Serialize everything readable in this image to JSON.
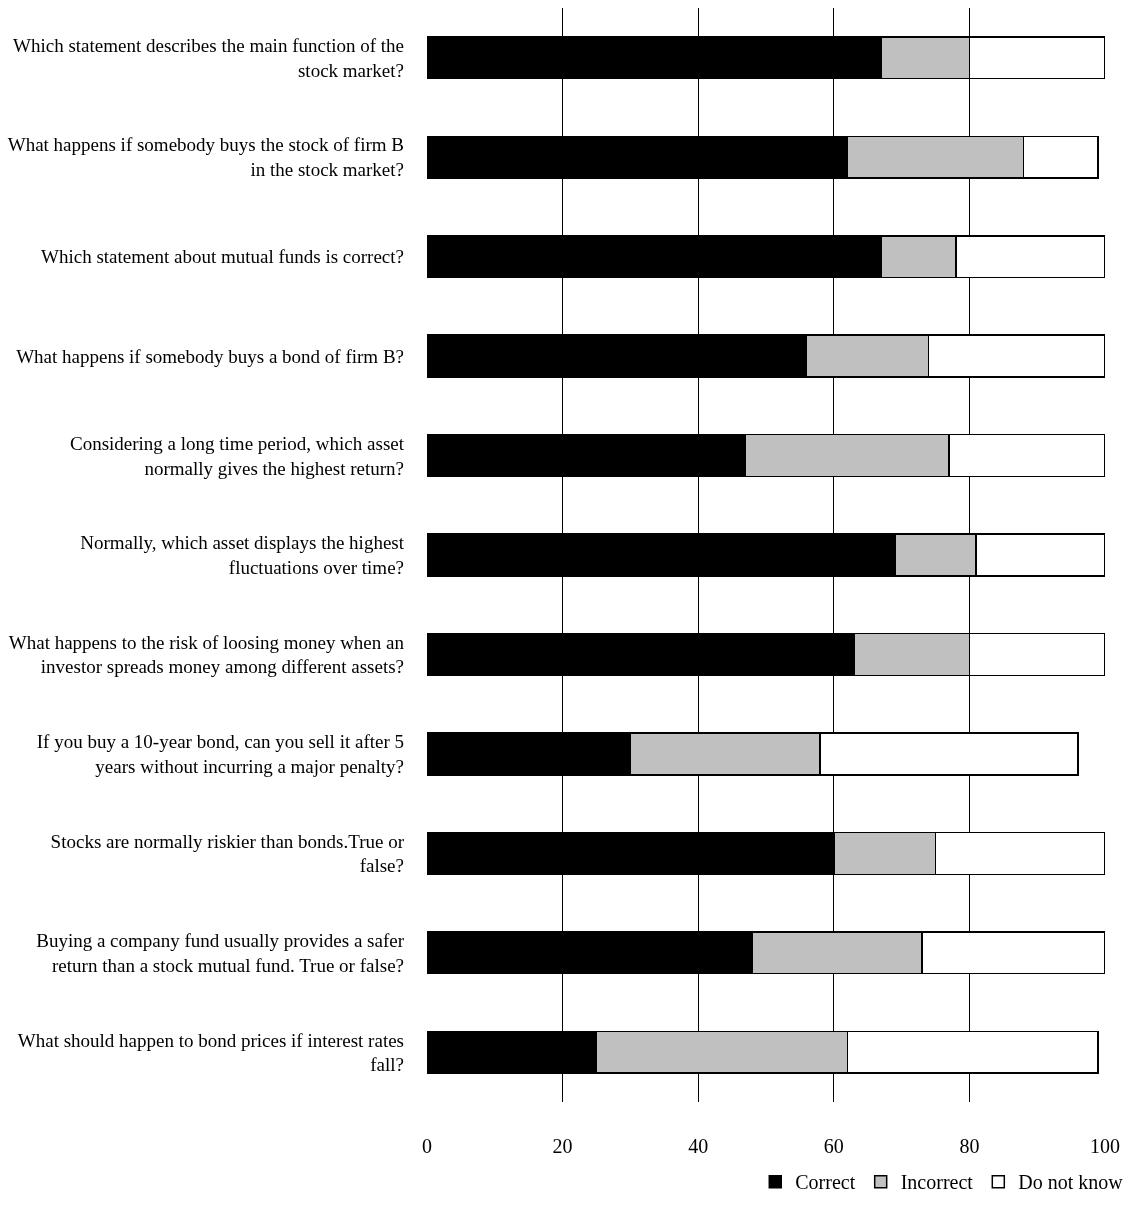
{
  "chart_data": {
    "type": "bar",
    "orientation": "horizontal",
    "stacked": true,
    "categories": [
      "Which statement describes the main function of the stock market?",
      "What happens if somebody buys the stock of firm B in the stock market?",
      "Which statement about mutual funds is correct?",
      "What happens if somebody buys a bond of firm B?",
      "Considering a long time period, which asset normally gives the highest return?",
      "Normally, which asset displays the highest fluctuations over time?",
      "What happens to the risk of loosing money when an investor spreads money among different assets?",
      "If you buy a 10-year bond, can you sell it after 5 years without incurring a major penalty?",
      "Stocks are normally riskier than bonds.True or false?",
      "Buying a company fund usually provides a safer return than a stock mutual fund. True or false?",
      "What should happen to bond prices if interest rates fall?"
    ],
    "series": [
      {
        "name": "Correct",
        "color": "#000000",
        "values": [
          67,
          62,
          67,
          56,
          47,
          69,
          63,
          30,
          60,
          48,
          25
        ]
      },
      {
        "name": "Incorrect",
        "color": "#c0c0c0",
        "values": [
          13,
          26,
          11,
          18,
          30,
          12,
          17,
          28,
          15,
          25,
          37
        ]
      },
      {
        "name": "Do not know",
        "color": "#ffffff",
        "values": [
          20,
          11,
          22,
          26,
          23,
          19,
          20,
          38,
          25,
          27,
          37
        ]
      }
    ],
    "xlim": [
      0,
      100
    ],
    "xticks": [
      0,
      20,
      40,
      60,
      80,
      100
    ],
    "grid": "x",
    "legend": "bottom"
  }
}
